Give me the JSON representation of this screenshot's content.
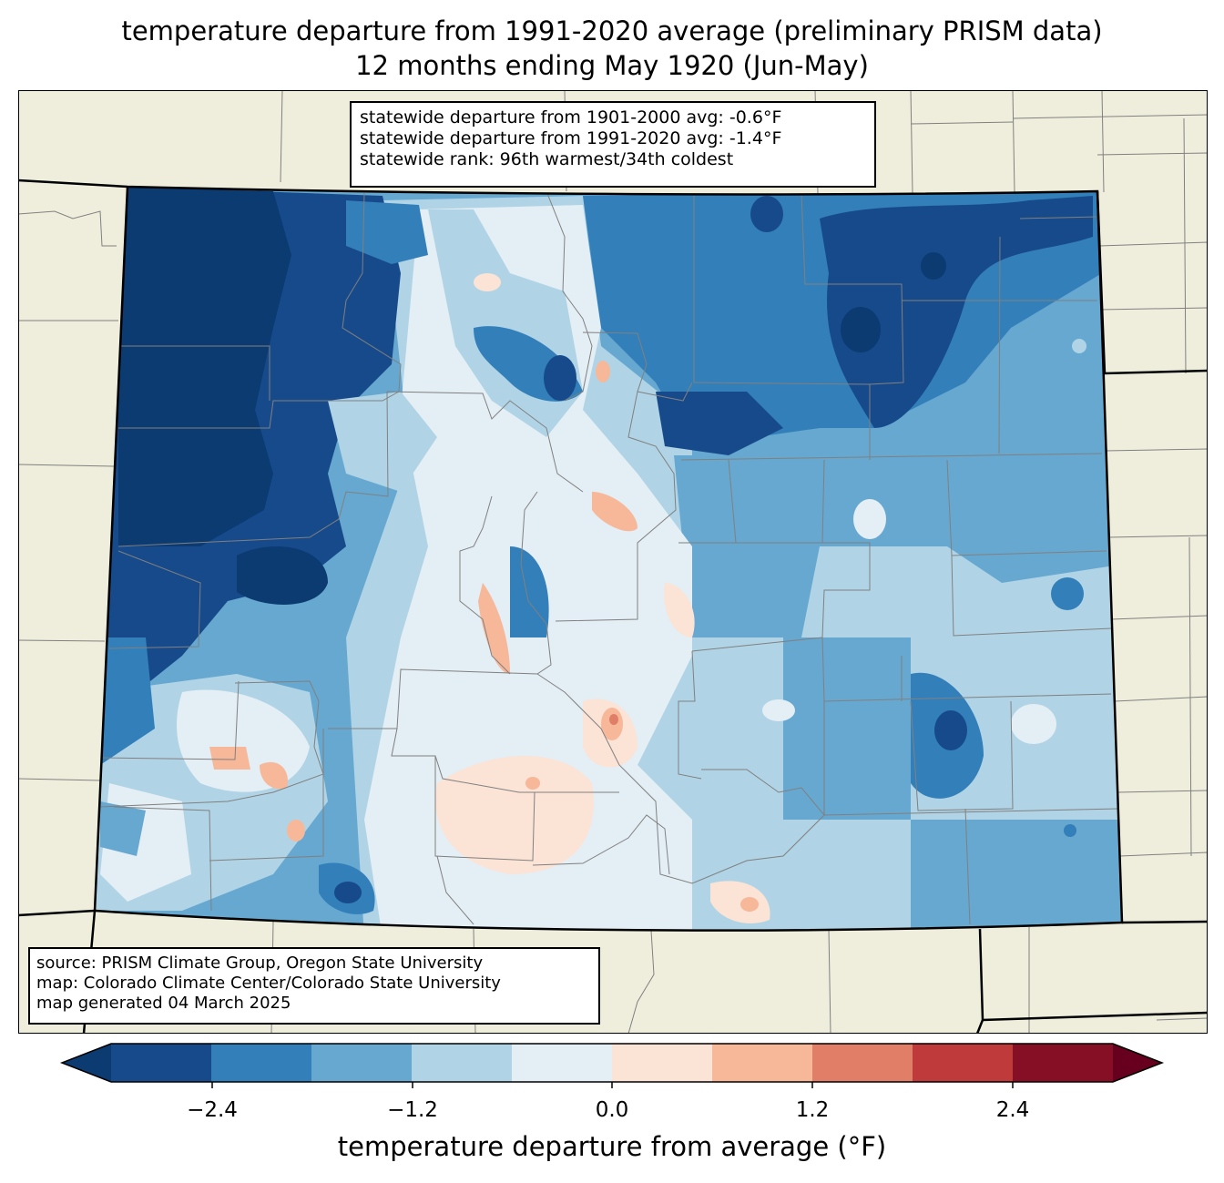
{
  "title": {
    "line1": "temperature departure from 1991-2020 average (preliminary PRISM data)",
    "line2": "12 months ending May 1920 (Jun-May)"
  },
  "stats": {
    "line1": "statewide departure from 1901-2000 avg: -0.6°F",
    "line2": "statewide departure from 1991-2020 avg: -1.4°F",
    "line3": "statewide rank: 96th warmest/34th coldest"
  },
  "source": {
    "line1": "source: PRISM Climate Group, Oregon State University",
    "line2": "map: Colorado Climate Center/Colorado State University",
    "line3": "map generated 04 March 2025"
  },
  "colorbar": {
    "label": "temperature departure from average (°F)",
    "levels": [
      -3.0,
      -2.4,
      -1.8,
      -1.2,
      -0.6,
      0.0,
      0.6,
      1.2,
      1.8,
      2.4,
      3.0
    ],
    "colors": [
      "#0c3b72",
      "#174a8a",
      "#327fb9",
      "#66a8d0",
      "#b0d4e6",
      "#e4eef5",
      "#fbe3d6",
      "#f7b799",
      "#e07e67",
      "#bf3a3a",
      "#870f25",
      "#67001f"
    ],
    "ticks": [
      "−2.4",
      "−1.2",
      "0.0",
      "1.2",
      "2.4"
    ]
  },
  "map": {
    "land_color": "#efeedd",
    "border_color": "#000000",
    "county_color": "#808080"
  }
}
